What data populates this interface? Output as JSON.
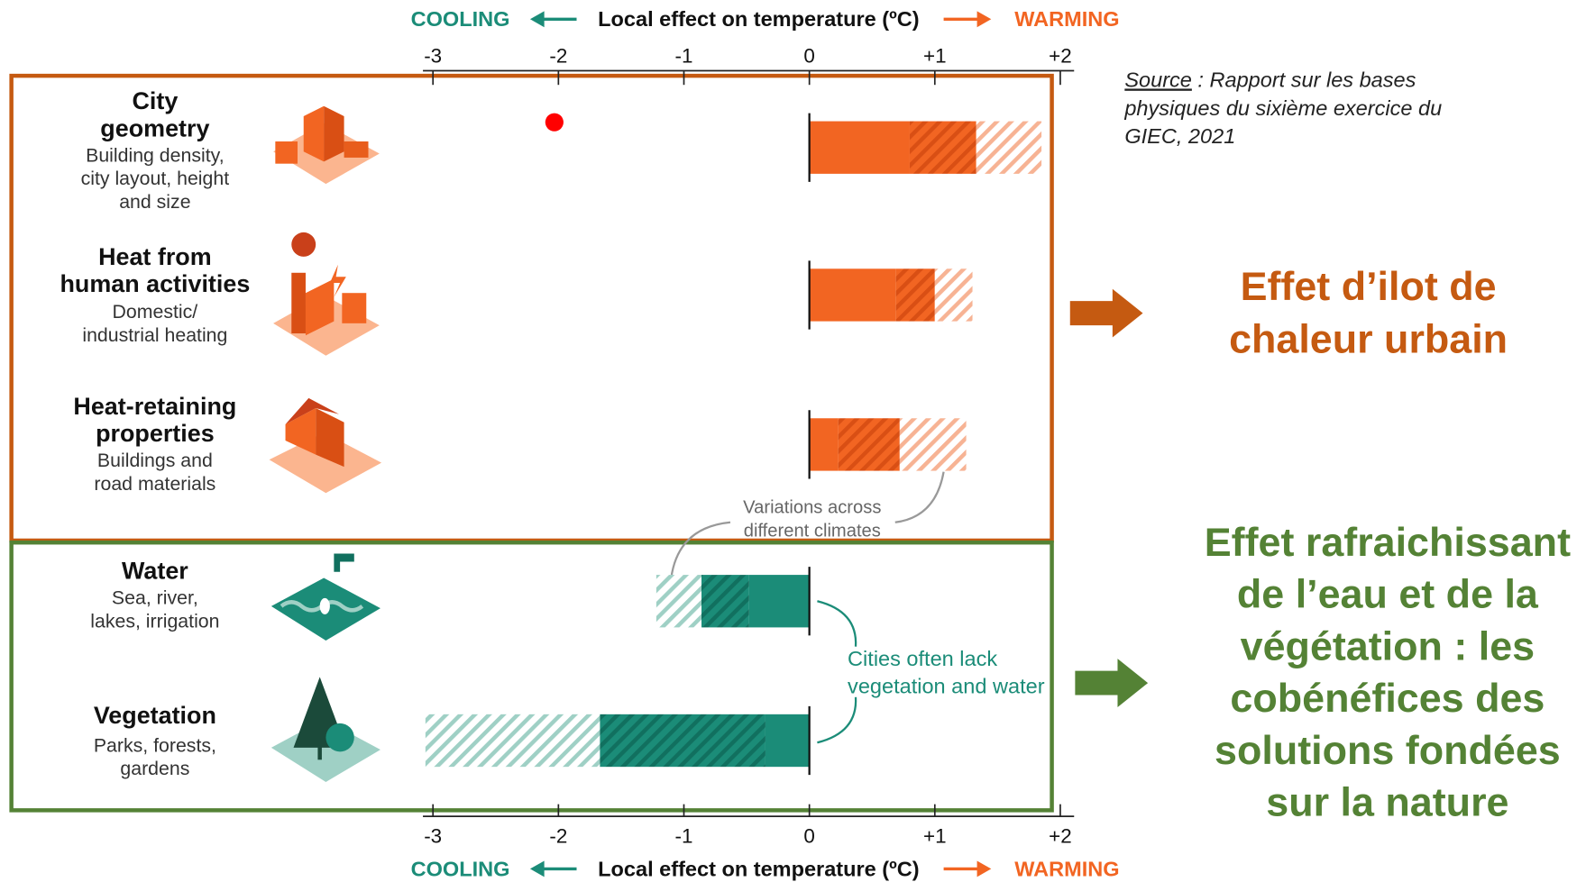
{
  "chart_data": {
    "type": "stacked-bar-horizontal",
    "axis_label": "Local effect on temperature (ºC)",
    "cooling_label": "COOLING",
    "warming_label": "WARMING",
    "categories": [
      [
        "City",
        "geometry"
      ],
      [
        "Heat from",
        "human activities"
      ],
      [
        "Heat-retaining",
        "properties"
      ],
      [
        "Water"
      ],
      [
        "Vegetation"
      ]
    ],
    "descriptions": [
      [
        "Building density,",
        "city layout, height",
        "and size"
      ],
      [
        "Domestic/",
        "industrial heating"
      ],
      [
        "Buildings and",
        "road materials"
      ],
      [
        "Sea, river,",
        "lakes, irrigation"
      ],
      [
        "Parks, forests,",
        "gardens"
      ]
    ],
    "series": [
      {
        "values": [
          0.8,
          0.69,
          0.23,
          -0.48,
          -0.35
        ],
        "colors": [
          "#f26522",
          "#f26522",
          "#f26522",
          "#1b8c78",
          "#1b8c78"
        ]
      },
      {
        "values": [
          0.53,
          0.31,
          0.49,
          -0.38,
          -1.32
        ],
        "colors": [
          "#d94f14",
          "#d94f14",
          "#d94f14",
          "#11705f",
          "#11705f"
        ],
        "pattern": "hatch-dark"
      },
      {
        "values": [
          0.52,
          0.3,
          0.53,
          -0.36,
          -1.39
        ],
        "colors": [
          "#f7b394",
          "#f7b394",
          "#f7b394",
          "#9fd0c5",
          "#9fd0c5"
        ],
        "pattern": "hatch-light"
      }
    ],
    "xlim": [
      -3.08,
      2.11
    ],
    "xticks": [
      -3,
      -2,
      -1,
      0,
      {
        "value": 1,
        "label": "+1"
      },
      {
        "value": 2,
        "label": "+2"
      }
    ],
    "annotations": [
      [
        "Variations across",
        "different climates"
      ],
      [
        "Cities often lack",
        "vegetation and water"
      ]
    ],
    "source": {
      "label": "Source",
      "text": [
        " : Rapport sur les bases",
        "physiques du sixième exercice du",
        "GIEC, 2021"
      ]
    },
    "right_labels": [
      [
        "Effet d’ilot de",
        "chaleur urbain"
      ],
      [
        "Effet rafraichissant",
        "de l’eau et de la",
        "végétation : les",
        "cobénéfices des",
        "solutions fondées",
        "sur la nature"
      ]
    ]
  }
}
